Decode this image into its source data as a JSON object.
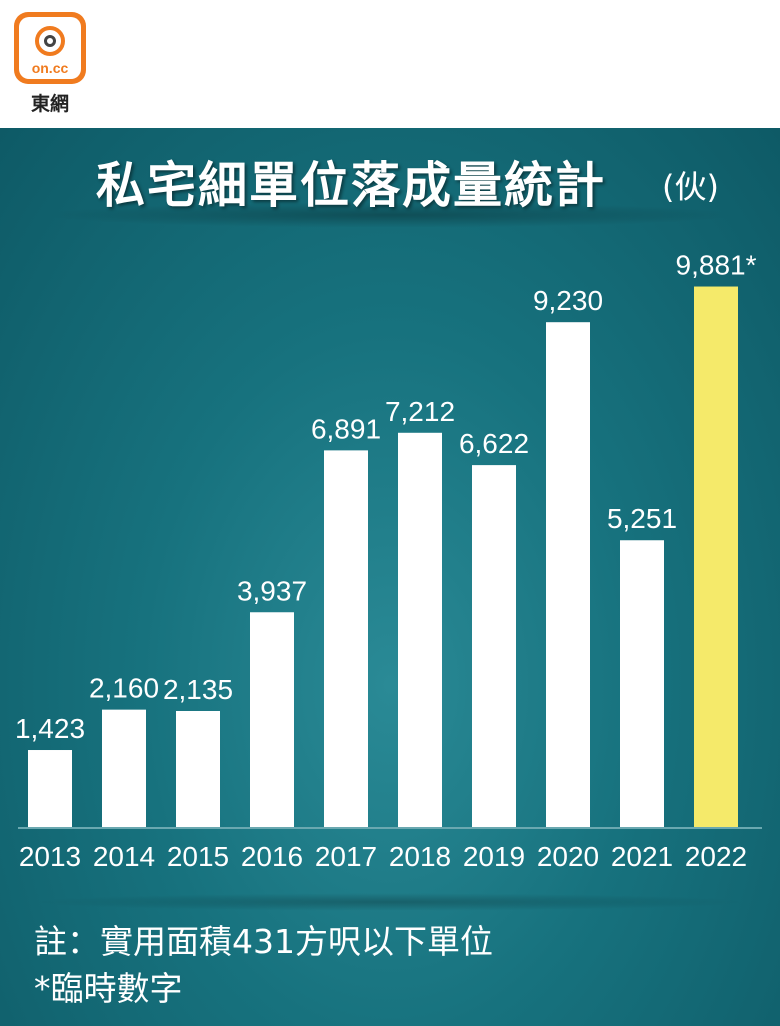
{
  "header": {
    "logo_text": "on.cc",
    "brand": "東網"
  },
  "colors": {
    "panel": "#17727e",
    "bar": "#ffffff",
    "highlight_bar": "#f5ea6a",
    "logo": "#f07b1f"
  },
  "icons": {
    "logo": "oncc-logo-icon"
  },
  "chart_data": {
    "type": "bar",
    "title": "私宅細單位落成量統計",
    "unit": "(伙)",
    "categories": [
      "2013",
      "2014",
      "2015",
      "2016",
      "2017",
      "2018",
      "2019",
      "2020",
      "2021",
      "2022"
    ],
    "values": [
      1423,
      2160,
      2135,
      3937,
      6891,
      7212,
      6622,
      9230,
      5251,
      9881
    ],
    "labels": [
      "1,423",
      "2,160",
      "2,135",
      "3,937",
      "6,891",
      "7,212",
      "6,622",
      "9,230",
      "5,251",
      "9,881*"
    ],
    "highlight_category": "2022",
    "ylim": [
      0,
      10000
    ],
    "grid": false,
    "legend": "none"
  },
  "notes": {
    "note": "註：實用面積431方呎以下單位",
    "footnote": "*臨時數字"
  }
}
